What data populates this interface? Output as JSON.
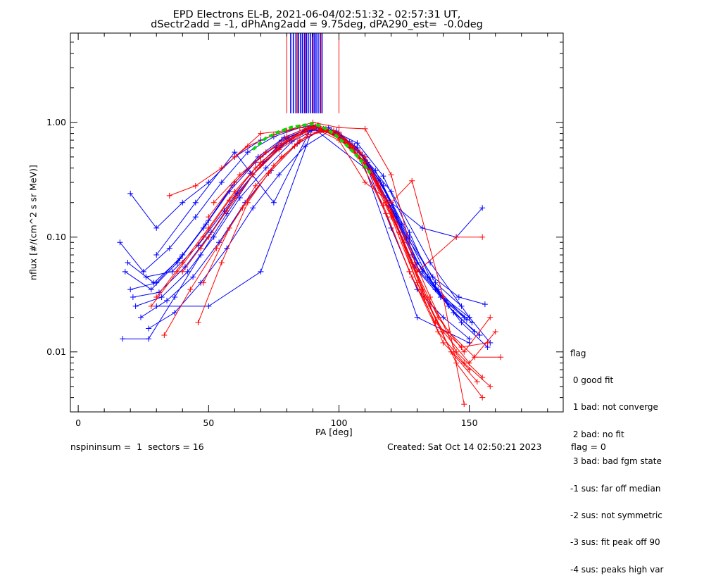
{
  "title_line1": "EPD Electrons EL-B, 2021-06-04/02:51:32 - 02:57:31 UT,",
  "title_line2": "dSectr2add = -1, dPhAng2add = 9.75deg, dPA290_est=  -0.0deg",
  "footer": {
    "left": "nspininsum =  1  sectors = 16",
    "created": "Created: Sat Oct 14 02:50:21 2023",
    "flag": "flag = 0"
  },
  "legend": {
    "title": "flag",
    "items": [
      " 0 good fit",
      " 1 bad: not converge",
      " 2 bad: no fit",
      " 3 bad: bad fgm state",
      "-1 sus: far off median",
      "-2 sus: not symmetric",
      "-3 sus: fit peak off 90",
      "-4 sus: peaks high var"
    ]
  },
  "colors": {
    "series_a": "#0000ff",
    "series_b": "#ff0000",
    "fit": "#00dd00",
    "axes": "#000000"
  },
  "chart_data": {
    "type": "line",
    "xlabel": "PA [deg]",
    "ylabel": "nflux [#/(cm^2 s sr MeV)]",
    "xlim": [
      -3,
      186
    ],
    "ylim": [
      0.003,
      6.0
    ],
    "yscale": "log",
    "x_ticks": [
      0,
      50,
      100,
      150
    ],
    "x_tick_labels": [
      "0",
      "50",
      "100",
      "150"
    ],
    "y_ticks": [
      0.01,
      0.1,
      1.0
    ],
    "y_tick_labels": [
      "0.01",
      "0.10",
      "1.00"
    ],
    "grid": false,
    "legend_position": "right",
    "vertical_markers": {
      "range": [
        1.2,
        6.0
      ],
      "blue_x": [
        81.5,
        82.5,
        83.5,
        84.5,
        85.3,
        86.0,
        86.8,
        87.5,
        88.2,
        89.0,
        89.8,
        90.5,
        91.2,
        92.0,
        92.8,
        93.5
      ],
      "red_x": [
        80.0,
        84.0,
        87.0,
        90.0,
        93.0,
        100.0
      ]
    },
    "fit_curve": {
      "name": "",
      "x": [
        67,
        72,
        77,
        82,
        87,
        90,
        93,
        98,
        103,
        108,
        112
      ],
      "y": [
        0.58,
        0.73,
        0.83,
        0.91,
        0.95,
        0.97,
        0.93,
        0.8,
        0.63,
        0.48,
        0.36
      ]
    },
    "series": [
      {
        "color": "blue",
        "x": [
          20,
          30,
          40,
          50,
          60,
          70,
          80,
          90,
          100,
          110,
          120,
          130,
          140,
          150
        ],
        "y": [
          0.24,
          0.12,
          0.2,
          0.3,
          0.5,
          0.7,
          0.85,
          0.95,
          0.75,
          0.45,
          0.12,
          0.035,
          0.02,
          0.013
        ]
      },
      {
        "color": "blue",
        "x": [
          16,
          25,
          35,
          45,
          55,
          65,
          75,
          85,
          90,
          100,
          110,
          120,
          132,
          145,
          155
        ],
        "y": [
          0.09,
          0.05,
          0.08,
          0.15,
          0.3,
          0.55,
          0.75,
          0.9,
          0.95,
          0.78,
          0.5,
          0.2,
          0.12,
          0.1,
          0.18
        ]
      },
      {
        "color": "blue",
        "x": [
          18,
          28,
          38,
          48,
          58,
          68,
          78,
          88,
          98,
          108,
          118,
          128,
          138,
          148
        ],
        "y": [
          0.05,
          0.035,
          0.06,
          0.12,
          0.25,
          0.45,
          0.7,
          0.88,
          0.8,
          0.55,
          0.22,
          0.07,
          0.035,
          0.02
        ]
      },
      {
        "color": "blue",
        "x": [
          22,
          32,
          42,
          52,
          62,
          72,
          82,
          92,
          102,
          112,
          122,
          132,
          142,
          152
        ],
        "y": [
          0.025,
          0.03,
          0.05,
          0.1,
          0.22,
          0.4,
          0.68,
          0.9,
          0.7,
          0.4,
          0.15,
          0.05,
          0.025,
          0.015
        ]
      },
      {
        "color": "blue",
        "x": [
          20,
          30,
          40,
          50,
          60,
          70,
          80,
          90,
          100,
          110,
          120,
          130,
          140,
          150,
          158
        ],
        "y": [
          0.035,
          0.04,
          0.07,
          0.14,
          0.3,
          0.5,
          0.72,
          0.93,
          0.82,
          0.5,
          0.18,
          0.06,
          0.03,
          0.02,
          0.012
        ]
      },
      {
        "color": "blue",
        "x": [
          24,
          34,
          44,
          54,
          64,
          74,
          84,
          94,
          104,
          114,
          124,
          134,
          144,
          154
        ],
        "y": [
          0.02,
          0.028,
          0.045,
          0.09,
          0.2,
          0.38,
          0.65,
          0.88,
          0.68,
          0.38,
          0.13,
          0.045,
          0.022,
          0.014
        ]
      },
      {
        "color": "blue",
        "x": [
          30,
          50,
          70,
          90,
          110,
          130,
          150
        ],
        "y": [
          0.025,
          0.025,
          0.05,
          0.9,
          0.4,
          0.02,
          0.012
        ]
      },
      {
        "color": "blue",
        "x": [
          30,
          45,
          60,
          75,
          90,
          105,
          120,
          135,
          150
        ],
        "y": [
          0.07,
          0.2,
          0.55,
          0.2,
          0.95,
          0.65,
          0.25,
          0.06,
          0.02
        ]
      },
      {
        "color": "blue",
        "x": [
          17,
          27,
          37,
          47,
          57,
          67,
          77,
          87,
          97,
          107,
          117,
          127,
          137,
          147
        ],
        "y": [
          0.013,
          0.013,
          0.03,
          0.07,
          0.16,
          0.35,
          0.6,
          0.85,
          0.85,
          0.6,
          0.28,
          0.1,
          0.04,
          0.025
        ]
      },
      {
        "color": "blue",
        "x": [
          26,
          36,
          46,
          56,
          66,
          76,
          86,
          96,
          106,
          116,
          126,
          136,
          146,
          156
        ],
        "y": [
          0.045,
          0.05,
          0.085,
          0.17,
          0.36,
          0.6,
          0.82,
          0.9,
          0.62,
          0.3,
          0.1,
          0.045,
          0.03,
          0.026
        ]
      },
      {
        "color": "blue",
        "x": [
          21,
          31,
          41,
          51,
          61,
          71,
          81,
          91,
          101,
          111,
          121,
          131,
          141,
          151
        ],
        "y": [
          0.03,
          0.033,
          0.055,
          0.11,
          0.24,
          0.45,
          0.7,
          0.92,
          0.76,
          0.45,
          0.16,
          0.05,
          0.028,
          0.018
        ]
      },
      {
        "color": "blue",
        "x": [
          19,
          29,
          39,
          49,
          59,
          69,
          79,
          89,
          99,
          109,
          119,
          129,
          139,
          149
        ],
        "y": [
          0.06,
          0.04,
          0.065,
          0.13,
          0.28,
          0.5,
          0.74,
          0.92,
          0.84,
          0.52,
          0.19,
          0.055,
          0.03,
          0.019
        ]
      },
      {
        "color": "blue",
        "x": [
          27,
          37,
          47,
          57,
          67,
          77,
          87,
          97,
          107,
          117,
          127,
          137,
          147,
          157
        ],
        "y": [
          0.016,
          0.022,
          0.04,
          0.08,
          0.18,
          0.35,
          0.62,
          0.86,
          0.66,
          0.34,
          0.11,
          0.035,
          0.018,
          0.011
        ]
      },
      {
        "color": "red",
        "x": [
          35,
          45,
          55,
          65,
          75,
          85,
          95,
          105,
          115,
          125,
          135,
          145,
          155
        ],
        "y": [
          0.23,
          0.28,
          0.4,
          0.62,
          0.78,
          0.9,
          0.85,
          0.6,
          0.3,
          0.1,
          0.03,
          0.01,
          0.006
        ]
      },
      {
        "color": "red",
        "x": [
          30,
          40,
          50,
          60,
          70,
          80,
          90,
          100,
          110,
          120,
          130,
          140,
          150,
          160
        ],
        "y": [
          0.03,
          0.06,
          0.12,
          0.25,
          0.45,
          0.68,
          0.92,
          0.82,
          0.5,
          0.17,
          0.04,
          0.015,
          0.008,
          0.015
        ]
      },
      {
        "color": "red",
        "x": [
          46,
          55,
          65,
          75,
          85,
          95,
          105,
          115,
          125,
          135,
          145,
          155
        ],
        "y": [
          0.018,
          0.06,
          0.2,
          0.42,
          0.7,
          0.88,
          0.62,
          0.28,
          0.09,
          0.025,
          0.008,
          0.004
        ]
      },
      {
        "color": "red",
        "x": [
          50,
          60,
          70,
          80,
          90,
          100,
          110,
          120,
          130,
          140,
          150
        ],
        "y": [
          0.15,
          0.3,
          0.5,
          0.75,
          0.95,
          0.78,
          0.45,
          0.15,
          0.04,
          0.012,
          0.007
        ]
      },
      {
        "color": "red",
        "x": [
          28,
          38,
          48,
          58,
          68,
          78,
          88,
          98,
          108,
          118,
          128,
          138,
          148,
          158
        ],
        "y": [
          0.025,
          0.05,
          0.1,
          0.21,
          0.4,
          0.65,
          0.9,
          0.8,
          0.48,
          0.16,
          0.045,
          0.015,
          0.008,
          0.005
        ]
      },
      {
        "color": "red",
        "x": [
          33,
          43,
          53,
          63,
          73,
          83,
          93,
          103,
          113,
          123,
          133,
          143,
          153
        ],
        "y": [
          0.014,
          0.035,
          0.08,
          0.18,
          0.36,
          0.62,
          0.88,
          0.66,
          0.35,
          0.11,
          0.03,
          0.01,
          0.0055
        ]
      },
      {
        "color": "red",
        "x": [
          40,
          50,
          60,
          70,
          80,
          90,
          100,
          110,
          120,
          128,
          140,
          148
        ],
        "y": [
          0.05,
          0.1,
          0.22,
          0.42,
          0.7,
          0.9,
          0.7,
          0.3,
          0.2,
          0.31,
          0.03,
          0.0035
        ]
      },
      {
        "color": "red",
        "x": [
          48,
          58,
          68,
          78,
          88,
          98,
          108,
          118,
          128,
          138,
          148,
          158
        ],
        "y": [
          0.04,
          0.12,
          0.28,
          0.5,
          0.78,
          0.85,
          0.55,
          0.2,
          0.06,
          0.02,
          0.01,
          0.02
        ]
      },
      {
        "color": "red",
        "x": [
          52,
          62,
          72,
          82,
          92,
          102,
          112,
          122,
          132,
          142,
          152,
          162
        ],
        "y": [
          0.2,
          0.35,
          0.55,
          0.72,
          0.95,
          0.72,
          0.38,
          0.13,
          0.035,
          0.015,
          0.009,
          0.009
        ]
      },
      {
        "color": "red",
        "x": [
          47,
          57,
          67,
          77,
          87,
          97,
          107,
          117,
          127,
          137,
          147,
          157
        ],
        "y": [
          0.08,
          0.17,
          0.35,
          0.58,
          0.82,
          0.83,
          0.52,
          0.19,
          0.05,
          0.018,
          0.011,
          0.012
        ]
      },
      {
        "color": "red",
        "x": [
          60,
          70,
          80,
          90,
          100,
          110,
          120,
          130,
          145,
          155
        ],
        "y": [
          0.5,
          0.8,
          0.85,
          1.0,
          0.9,
          0.88,
          0.35,
          0.05,
          0.1,
          0.1
        ]
      }
    ]
  }
}
